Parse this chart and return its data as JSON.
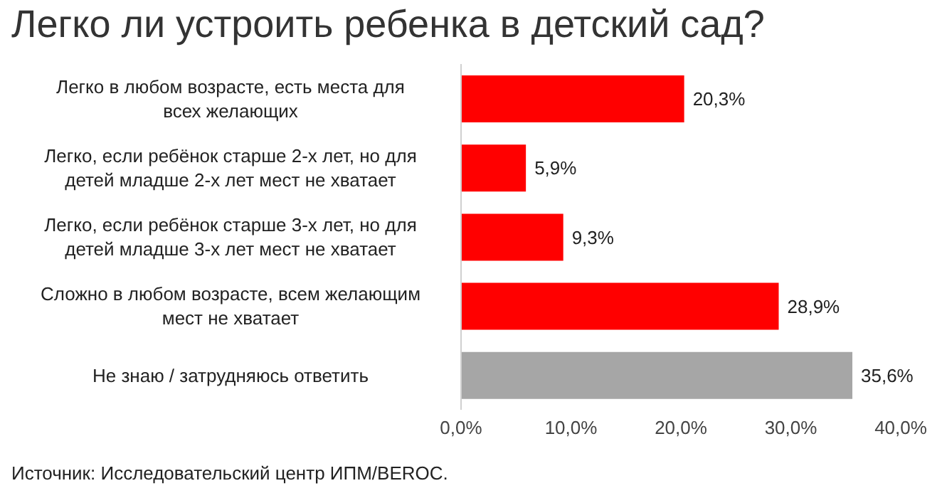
{
  "chart_data": {
    "type": "bar",
    "orientation": "horizontal",
    "title": "Легко ли устроить ребенка в детский сад?",
    "categories": [
      "Легко в любом возрасте, есть места для всех желающих",
      "Легко, если ребёнок старше 2-х лет, но для детей младше 2-х лет мест не хватает",
      "Легко, если ребёнок старше 3-х лет, но для детей младше 3-х лет мест не хватает",
      "Сложно в любом возрасте, всем желающим мест не хватает",
      "Не знаю / затрудняюсь ответить"
    ],
    "values": [
      20.3,
      5.9,
      9.3,
      28.9,
      35.6
    ],
    "value_labels": [
      "20,3%",
      "5,9%",
      "9,3%",
      "28,9%",
      "35,6%"
    ],
    "colors": [
      "#ff0000",
      "#ff0000",
      "#ff0000",
      "#ff0000",
      "#a6a6a6"
    ],
    "xlim": [
      0,
      40
    ],
    "xticks": [
      {
        "value": 0,
        "label": "0,0%"
      },
      {
        "value": 10,
        "label": "10,0%"
      },
      {
        "value": 20,
        "label": "20,0%"
      },
      {
        "value": 30,
        "label": "30,0%"
      },
      {
        "value": 40,
        "label": "40,0%"
      }
    ],
    "grid": false,
    "legend": false,
    "annotations": [
      "Источник: Исследовательский центр ИПМ/BEROC."
    ]
  }
}
